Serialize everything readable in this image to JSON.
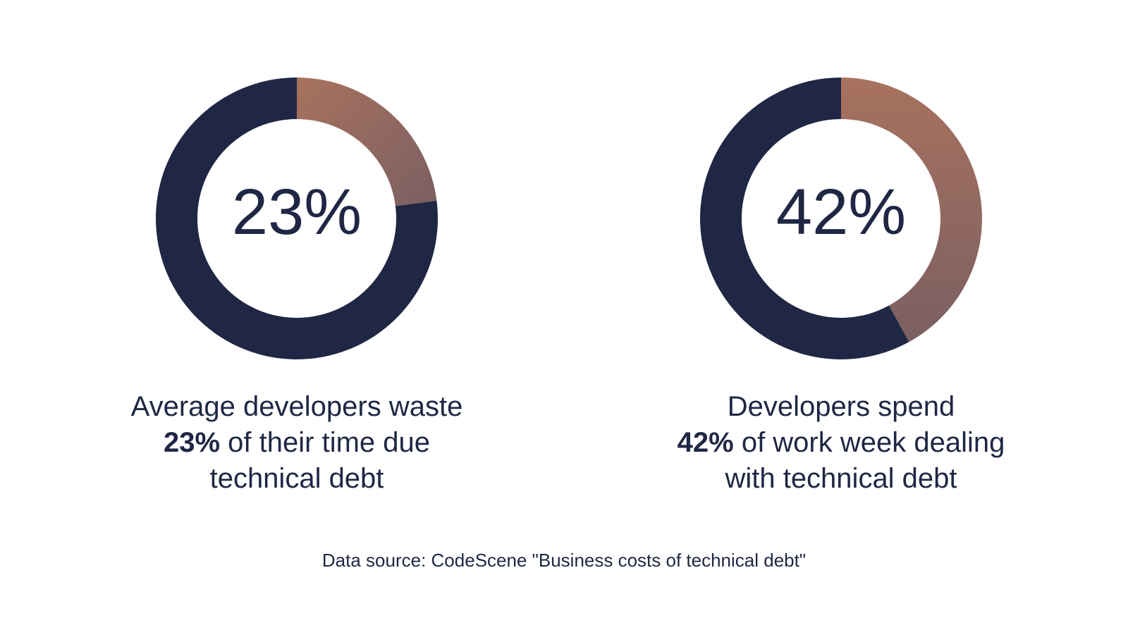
{
  "chart_data": [
    {
      "type": "pie",
      "variant": "donut",
      "values": [
        23,
        77
      ],
      "unit": "%",
      "highlight_value": 23,
      "center_label": "23%",
      "caption": {
        "line1": "Average developers waste",
        "line2_bold": "23%",
        "line2_rest": " of their time due",
        "line3": "technical debt"
      },
      "colors": {
        "highlight_start": "#a8725e",
        "highlight_end": "#7b5f62",
        "rest": "#1f2744"
      }
    },
    {
      "type": "pie",
      "variant": "donut",
      "values": [
        42,
        58
      ],
      "unit": "%",
      "highlight_value": 42,
      "center_label": "42%",
      "caption": {
        "line1": "Developers spend",
        "line2_bold": "42%",
        "line2_rest": " of work week dealing",
        "line3": "with technical debt"
      },
      "colors": {
        "highlight_start": "#a8725e",
        "highlight_end": "#7b5f62",
        "rest": "#1f2744"
      }
    }
  ],
  "footer": {
    "source": "Data source: CodeScene \"Business costs of technical debt\""
  }
}
